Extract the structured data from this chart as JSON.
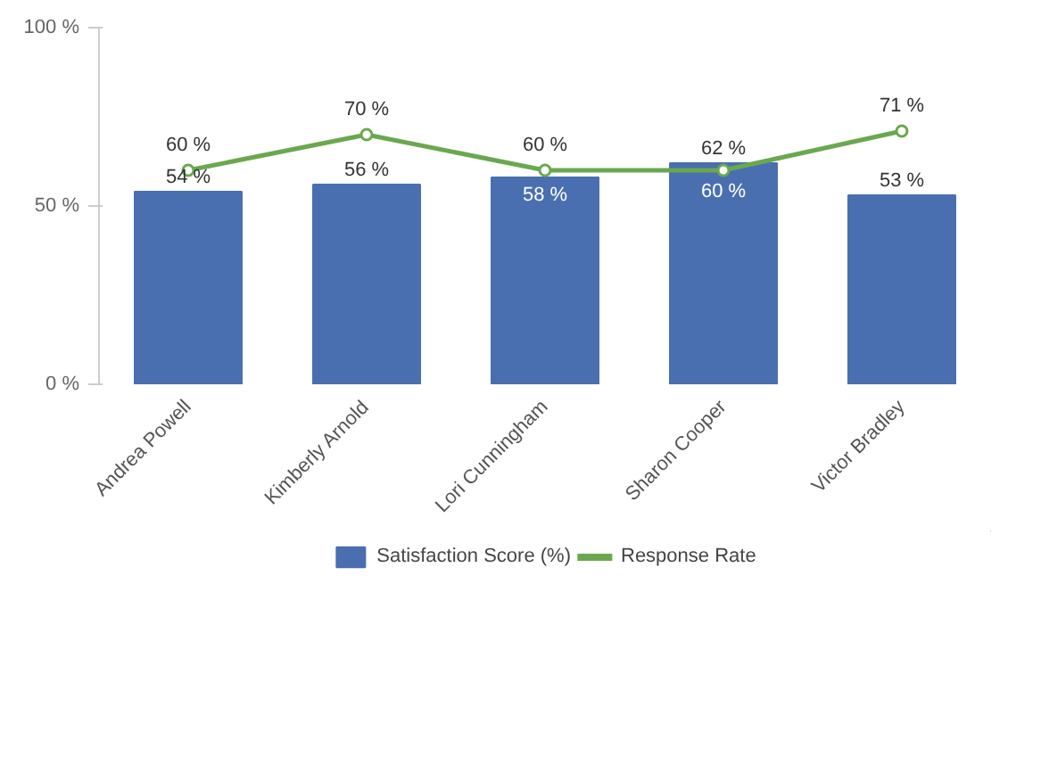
{
  "chart_data": {
    "type": "bar",
    "categories": [
      "Andrea Powell",
      "Kimberly Arnold",
      "Lori Cunningham",
      "Sharon Cooper",
      "Victor Bradley"
    ],
    "series": [
      {
        "name": "Satisfaction Score (%)",
        "color": "#4a6fb0",
        "values": [
          54,
          56,
          58,
          62,
          53
        ],
        "value_labels": [
          "54 %",
          "56 %",
          "58 %",
          "62 %",
          "53 %"
        ]
      },
      {
        "name": "Response Rate",
        "type": "line",
        "color": "#6aa84f",
        "values": [
          60,
          70,
          60,
          60,
          71
        ],
        "value_labels": [
          "60 %",
          "70 %",
          "60 %",
          "60 %",
          "71 %"
        ]
      }
    ],
    "ylim": [
      0,
      100
    ],
    "yticks": [
      {
        "value": 0,
        "label": "0 %"
      },
      {
        "value": 50,
        "label": "50 %"
      },
      {
        "value": 100,
        "label": "100 %"
      }
    ],
    "data_labels": true,
    "grid": false,
    "legend": "bottom",
    "marker": "circle",
    "line_style": "solid"
  }
}
